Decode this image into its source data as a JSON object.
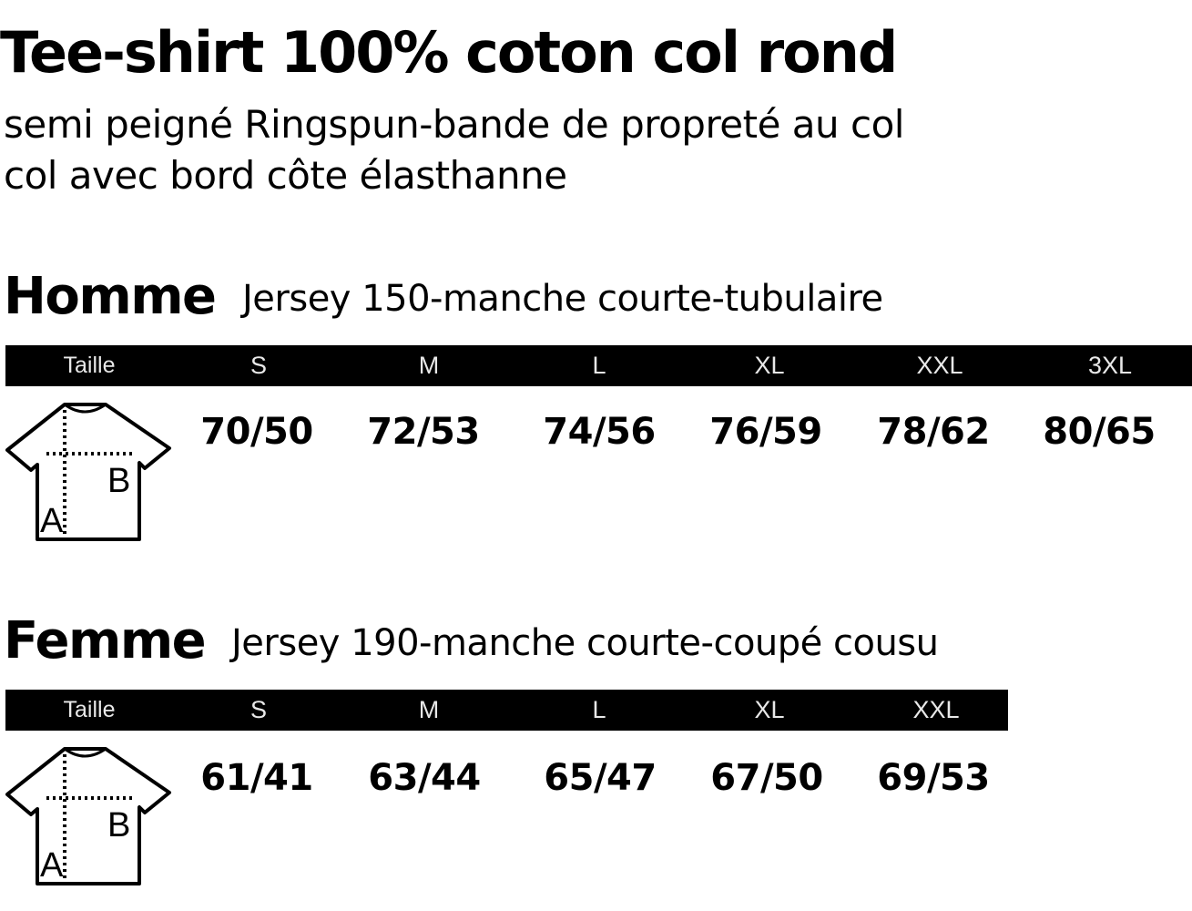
{
  "product": {
    "title": "Tee-shirt 100% coton col rond",
    "subtitle_line1": "semi peigné Ringspun-bande de propreté au col",
    "subtitle_line2": "col avec bord côte élasthanne"
  },
  "homme": {
    "name": "Homme",
    "description": "Jersey 150-manche courte-tubulaire",
    "header_label": "Taille",
    "sizes": [
      "S",
      "M",
      "L",
      "XL",
      "XXL",
      "3XL"
    ],
    "measures": [
      "70/50",
      "72/53",
      "74/56",
      "76/59",
      "78/62",
      "80/65"
    ],
    "diagram": {
      "label_a": "A",
      "label_b": "B",
      "icon": "tshirt-measure-icon"
    }
  },
  "femme": {
    "name": "Femme",
    "description": "Jersey 190-manche courte-coupé cousu",
    "header_label": "Taille",
    "sizes": [
      "S",
      "M",
      "L",
      "XL",
      "XXL"
    ],
    "measures": [
      "61/41",
      "63/44",
      "65/47",
      "67/50",
      "69/53"
    ],
    "diagram": {
      "label_a": "A",
      "label_b": "B",
      "icon": "tshirt-measure-icon"
    }
  }
}
